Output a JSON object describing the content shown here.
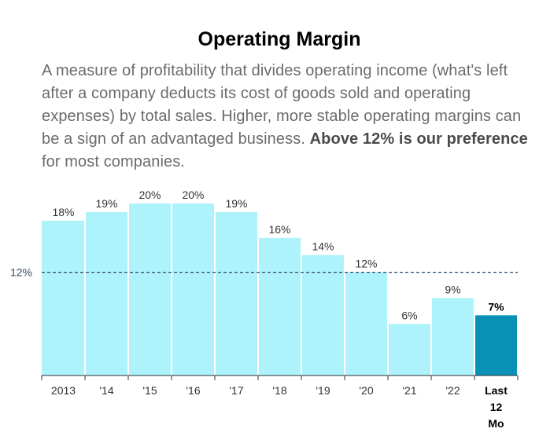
{
  "header": {
    "title": "Operating Margin",
    "description_main": "A measure of profitability that divides operating income (what's left after a company deducts its cost of goods sold and operating expenses) by total sales. Higher, more stable operating margins can be a sign of an advantaged business.",
    "description_bold": "Above 12% is our preference",
    "description_tail": "for most companies."
  },
  "chart_data": {
    "type": "bar",
    "title": "Operating Margin",
    "categories": [
      "2013",
      "'14",
      "'15",
      "'16",
      "'17",
      "'18",
      "'19",
      "'20",
      "'21",
      "'22",
      "Last 12 Mo"
    ],
    "category_lines": [
      [
        "2013"
      ],
      [
        "'14"
      ],
      [
        "'15"
      ],
      [
        "'16"
      ],
      [
        "'17"
      ],
      [
        "'18"
      ],
      [
        "'19"
      ],
      [
        "'20"
      ],
      [
        "'21"
      ],
      [
        "'22"
      ],
      [
        "Last",
        "12",
        "Mo"
      ]
    ],
    "values": [
      18,
      19,
      20,
      20,
      19,
      16,
      14,
      12,
      6,
      9,
      7
    ],
    "value_labels": [
      "18%",
      "19%",
      "20%",
      "20%",
      "19%",
      "16%",
      "14%",
      "12%",
      "6%",
      "9%",
      "7%"
    ],
    "highlight_index": 10,
    "reference_line": {
      "value": 12,
      "label": "12%"
    },
    "ylim": [
      0,
      21
    ],
    "grid": false,
    "colors": {
      "bar": "#aef2fc",
      "highlight": "#0791b6",
      "reference": "#2c4a6a",
      "axis": "#333333"
    }
  }
}
